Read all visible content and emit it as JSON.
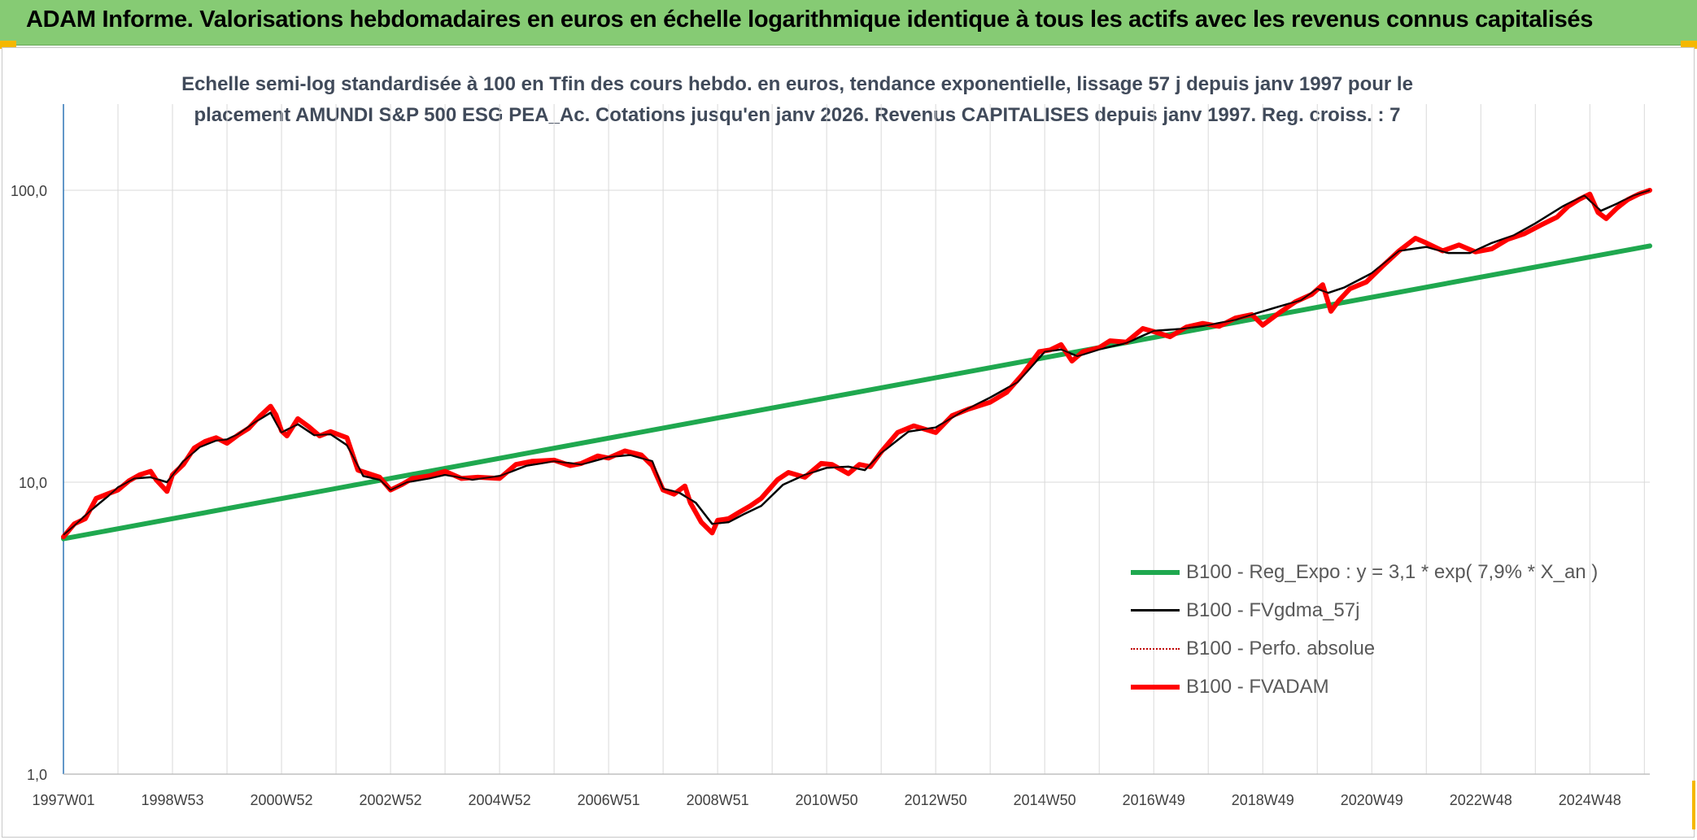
{
  "header": {
    "title": "ADAM Informe. Valorisations hebdomadaires en euros en échelle logarithmique identique à tous les actifs avec les revenus connus capitalisés"
  },
  "colors": {
    "banner": "#86cb74",
    "accent": "#f5b800",
    "regression": "#1fa84f",
    "smoothed": "#000000",
    "perf_absolue": "#c00000",
    "fvadam": "#ff0000",
    "grid": "#d9d9d9"
  },
  "chart_data": {
    "type": "line",
    "title_lines": [
      "Echelle semi-log standardisée à 100 en Tfin des cours hebdo. en euros, tendance exponentielle, lissage 57 j depuis janv 1997 pour le",
      "placement AMUNDI S&P 500 ESG PEA_Ac. Cotations jusqu'en janv 2026. Revenus CAPITALISES depuis janv 1997. Reg. croiss. : 7"
    ],
    "y_scale": "log",
    "ylim": [
      1,
      180
    ],
    "yticks": [
      {
        "value": 1,
        "label": "1,0"
      },
      {
        "value": 10,
        "label": "10,0"
      },
      {
        "value": 100,
        "label": "100,0"
      }
    ],
    "xlim": [
      1997.0,
      2026.1
    ],
    "xticks": [
      {
        "value": 1997.0,
        "label": "1997W01"
      },
      {
        "value": 1999.0,
        "label": "1998W53"
      },
      {
        "value": 2001.0,
        "label": "2000W52"
      },
      {
        "value": 2003.0,
        "label": "2002W52"
      },
      {
        "value": 2005.0,
        "label": "2004W52"
      },
      {
        "value": 2007.0,
        "label": "2006W51"
      },
      {
        "value": 2009.0,
        "label": "2008W51"
      },
      {
        "value": 2011.0,
        "label": "2010W50"
      },
      {
        "value": 2013.0,
        "label": "2012W50"
      },
      {
        "value": 2015.0,
        "label": "2014W50"
      },
      {
        "value": 2017.0,
        "label": "2016W49"
      },
      {
        "value": 2019.0,
        "label": "2018W49"
      },
      {
        "value": 2021.0,
        "label": "2020W49"
      },
      {
        "value": 2023.0,
        "label": "2022W48"
      },
      {
        "value": 2025.0,
        "label": "2024W48"
      }
    ],
    "grid": true,
    "legend_position": "bottom-right",
    "series": [
      {
        "name": "B100 - Reg_Expo : y = 3,1 * exp( 7,9% *  X_an )",
        "style": "solid-thick",
        "color": "#1fa84f",
        "x": [
          1997.0,
          2026.1
        ],
        "y": [
          6.4,
          64.5
        ]
      },
      {
        "name": "B100 - FVgdma_57j",
        "style": "solid-thin",
        "color": "#000000",
        "x": [
          1997.0,
          1997.2,
          1997.5,
          1997.8,
          1998.0,
          1998.3,
          1998.6,
          1998.9,
          1999.2,
          1999.5,
          1999.8,
          2000.0,
          2000.2,
          2000.5,
          2000.8,
          2001.0,
          2001.3,
          2001.6,
          2001.9,
          2002.2,
          2002.5,
          2002.8,
          2003.0,
          2003.3,
          2003.7,
          2004.0,
          2004.5,
          2005.0,
          2005.5,
          2006.0,
          2006.5,
          2007.0,
          2007.4,
          2007.8,
          2008.0,
          2008.3,
          2008.6,
          2008.9,
          2009.2,
          2009.5,
          2009.8,
          2010.2,
          2010.6,
          2011.0,
          2011.4,
          2011.7,
          2012.0,
          2012.5,
          2013.0,
          2013.5,
          2014.0,
          2014.5,
          2015.0,
          2015.3,
          2015.6,
          2016.0,
          2016.5,
          2017.0,
          2017.5,
          2018.0,
          2018.5,
          2018.9,
          2019.3,
          2019.7,
          2020.0,
          2020.2,
          2020.5,
          2021.0,
          2021.5,
          2022.0,
          2022.4,
          2022.8,
          2023.2,
          2023.6,
          2024.0,
          2024.5,
          2024.9,
          2025.2,
          2025.5,
          2025.8,
          2026.1
        ],
        "y": [
          6.6,
          7.1,
          8.0,
          8.9,
          9.6,
          10.3,
          10.4,
          10.0,
          11.8,
          13.2,
          13.9,
          14.0,
          14.6,
          16.0,
          17.3,
          14.8,
          15.8,
          14.5,
          14.6,
          13.4,
          10.5,
          10.2,
          9.4,
          10.0,
          10.3,
          10.6,
          10.2,
          10.5,
          11.4,
          11.8,
          11.5,
          12.2,
          12.4,
          11.8,
          9.5,
          9.2,
          8.5,
          7.2,
          7.3,
          7.8,
          8.3,
          9.8,
          10.6,
          11.2,
          11.3,
          11.0,
          12.6,
          14.9,
          15.4,
          17.5,
          19.5,
          22.0,
          28.0,
          28.5,
          27.0,
          28.5,
          30.0,
          33.0,
          33.5,
          34.5,
          36.0,
          38.0,
          40.0,
          42.0,
          46.0,
          44.5,
          46.5,
          52.0,
          62.0,
          64.0,
          61.0,
          61.0,
          66.0,
          70.0,
          77.0,
          88.0,
          96.0,
          85.0,
          90.0,
          96.0,
          100.0
        ]
      },
      {
        "name": "B100 - Perfo. absolue",
        "style": "dotted",
        "color": "#c00000",
        "x": [],
        "y": []
      },
      {
        "name": "B100 - FVADAM",
        "style": "solid-thick",
        "color": "#ff0000",
        "x": [
          1997.0,
          1997.2,
          1997.4,
          1997.6,
          1997.8,
          1998.0,
          1998.2,
          1998.4,
          1998.6,
          1998.7,
          1998.9,
          1999.0,
          1999.2,
          1999.4,
          1999.6,
          1999.8,
          2000.0,
          2000.2,
          2000.4,
          2000.6,
          2000.8,
          2000.9,
          2001.0,
          2001.1,
          2001.3,
          2001.5,
          2001.7,
          2001.9,
          2002.2,
          2002.4,
          2002.6,
          2002.8,
          2003.0,
          2003.2,
          2003.4,
          2003.7,
          2004.0,
          2004.3,
          2004.6,
          2005.0,
          2005.3,
          2005.6,
          2006.0,
          2006.3,
          2006.5,
          2006.8,
          2007.0,
          2007.3,
          2007.6,
          2007.8,
          2008.0,
          2008.2,
          2008.4,
          2008.5,
          2008.7,
          2008.9,
          2009.0,
          2009.2,
          2009.4,
          2009.6,
          2009.8,
          2010.1,
          2010.3,
          2010.6,
          2010.9,
          2011.1,
          2011.4,
          2011.6,
          2011.8,
          2012.0,
          2012.3,
          2012.6,
          2013.0,
          2013.3,
          2013.6,
          2014.0,
          2014.3,
          2014.6,
          2014.9,
          2015.1,
          2015.3,
          2015.5,
          2015.7,
          2016.0,
          2016.2,
          2016.5,
          2016.8,
          2017.0,
          2017.3,
          2017.6,
          2017.9,
          2018.2,
          2018.5,
          2018.8,
          2019.0,
          2019.3,
          2019.6,
          2019.9,
          2020.1,
          2020.25,
          2020.4,
          2020.6,
          2020.9,
          2021.2,
          2021.5,
          2021.8,
          2022.0,
          2022.3,
          2022.6,
          2022.9,
          2023.2,
          2023.5,
          2023.8,
          2024.1,
          2024.4,
          2024.6,
          2024.8,
          2025.0,
          2025.15,
          2025.3,
          2025.5,
          2025.7,
          2025.9,
          2026.1
        ],
        "y": [
          6.5,
          7.2,
          7.5,
          8.8,
          9.1,
          9.4,
          10.1,
          10.6,
          10.9,
          10.2,
          9.3,
          10.6,
          11.5,
          13.1,
          13.8,
          14.2,
          13.6,
          14.5,
          15.3,
          16.8,
          18.2,
          17.0,
          15.0,
          14.4,
          16.5,
          15.5,
          14.4,
          14.9,
          14.2,
          11.0,
          10.7,
          10.4,
          9.4,
          9.8,
          10.3,
          10.5,
          10.9,
          10.3,
          10.4,
          10.3,
          11.5,
          11.8,
          11.9,
          11.4,
          11.6,
          12.3,
          12.1,
          12.8,
          12.4,
          11.4,
          9.4,
          9.1,
          9.7,
          8.5,
          7.3,
          6.7,
          7.4,
          7.5,
          7.9,
          8.3,
          8.8,
          10.2,
          10.8,
          10.4,
          11.6,
          11.5,
          10.7,
          11.5,
          11.3,
          12.7,
          14.8,
          15.6,
          14.8,
          16.9,
          17.8,
          18.8,
          20.3,
          23.5,
          28.0,
          28.4,
          29.6,
          26.0,
          28.0,
          28.9,
          30.5,
          30.2,
          33.6,
          32.8,
          31.5,
          34.0,
          35.0,
          34.2,
          36.5,
          37.5,
          34.5,
          38.0,
          41.5,
          44.0,
          47.5,
          38.5,
          42.0,
          46.0,
          48.5,
          55.0,
          62.0,
          68.5,
          66.0,
          62.0,
          65.0,
          61.5,
          63.0,
          68.0,
          71.0,
          76.0,
          81.0,
          88.0,
          93.0,
          97.0,
          84.0,
          80.0,
          87.0,
          93.0,
          97.0,
          100.0
        ]
      }
    ]
  }
}
